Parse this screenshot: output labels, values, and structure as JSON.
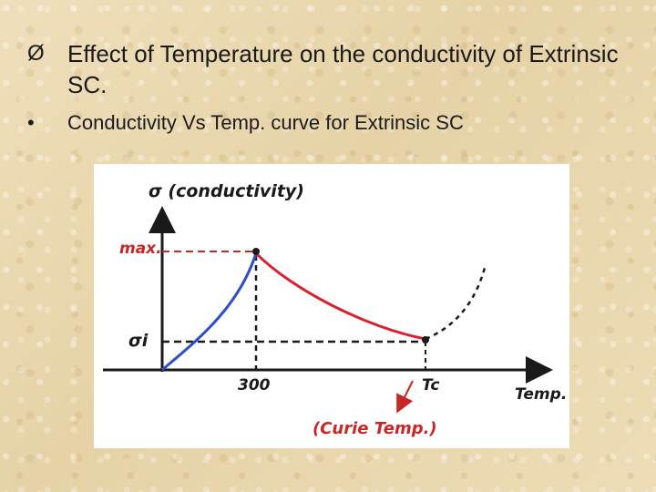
{
  "slide": {
    "title_bullet": "Ø",
    "title": "Effect of Temperature on the conductivity of Extrinsic SC.",
    "bullet_symbol": "•",
    "bullet": "Conductivity Vs Temp. curve for Extrinsic SC"
  },
  "figure": {
    "y_axis_label": "σ (conductivity)",
    "x_axis_label": "Temp.",
    "max_label": "max.",
    "sigma_i_label": "σi",
    "x_tick_300": "300",
    "x_tick_tc": "Tc",
    "curie_note": "(Curie Temp.)",
    "colors": {
      "rising_curve": "#2b4fc4",
      "falling_curve": "#d8202e",
      "axes": "#1a1a1a",
      "max_label": "#c62828",
      "curie_note": "#c62828"
    }
  }
}
